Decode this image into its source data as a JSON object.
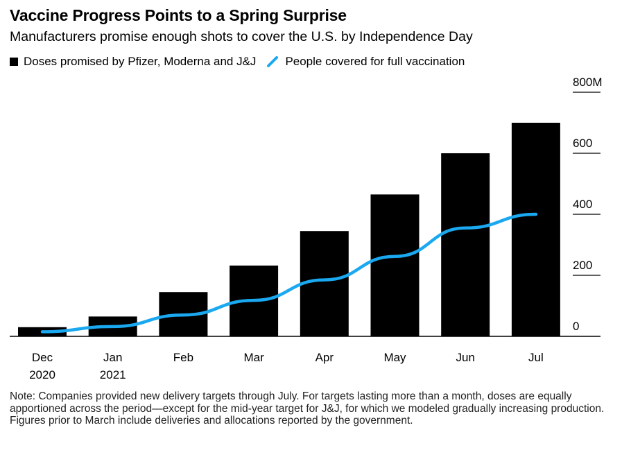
{
  "title": "Vaccine Progress Points to a Spring Surprise",
  "subtitle": "Manufacturers promise enough shots to cover the U.S. by Independence Day",
  "legend": {
    "doses": "Doses promised by Pfizer, Moderna and J&J",
    "people": "People covered for full vaccination"
  },
  "colors": {
    "bar": "#000000",
    "line": "#1aa8f0",
    "axis": "#000000"
  },
  "note": "Note: Companies provided new delivery targets through July. For targets lasting more than a month, doses are equally apportioned across the period—except for the mid-year target for J&J, for which we modeled gradually increasing production. Figures prior to March include deliveries and allocations reported by the government.",
  "chart_data": {
    "type": "bar",
    "categories": [
      "Dec 2020",
      "Jan 2021",
      "Feb",
      "Mar",
      "Apr",
      "May",
      "Jun",
      "Jul"
    ],
    "category_lines": [
      [
        "Dec",
        "2020"
      ],
      [
        "Jan",
        "2021"
      ],
      [
        "Feb"
      ],
      [
        "Mar"
      ],
      [
        "Apr"
      ],
      [
        "May"
      ],
      [
        "Jun"
      ],
      [
        "Jul"
      ]
    ],
    "series": [
      {
        "name": "Doses promised by Pfizer, Moderna and J&J",
        "type": "bar",
        "values": [
          30,
          65,
          145,
          232,
          345,
          465,
          600,
          700
        ]
      },
      {
        "name": "People covered for full vaccination",
        "type": "line",
        "values": [
          15,
          32,
          70,
          118,
          185,
          262,
          355,
          400
        ]
      }
    ],
    "yticks": [
      0,
      200,
      400,
      600,
      800
    ],
    "ytick_labels": [
      "0",
      "200",
      "400",
      "600",
      "800M"
    ],
    "ylim": [
      0,
      800
    ],
    "axis_position": "right",
    "legend_position": "top-left"
  }
}
